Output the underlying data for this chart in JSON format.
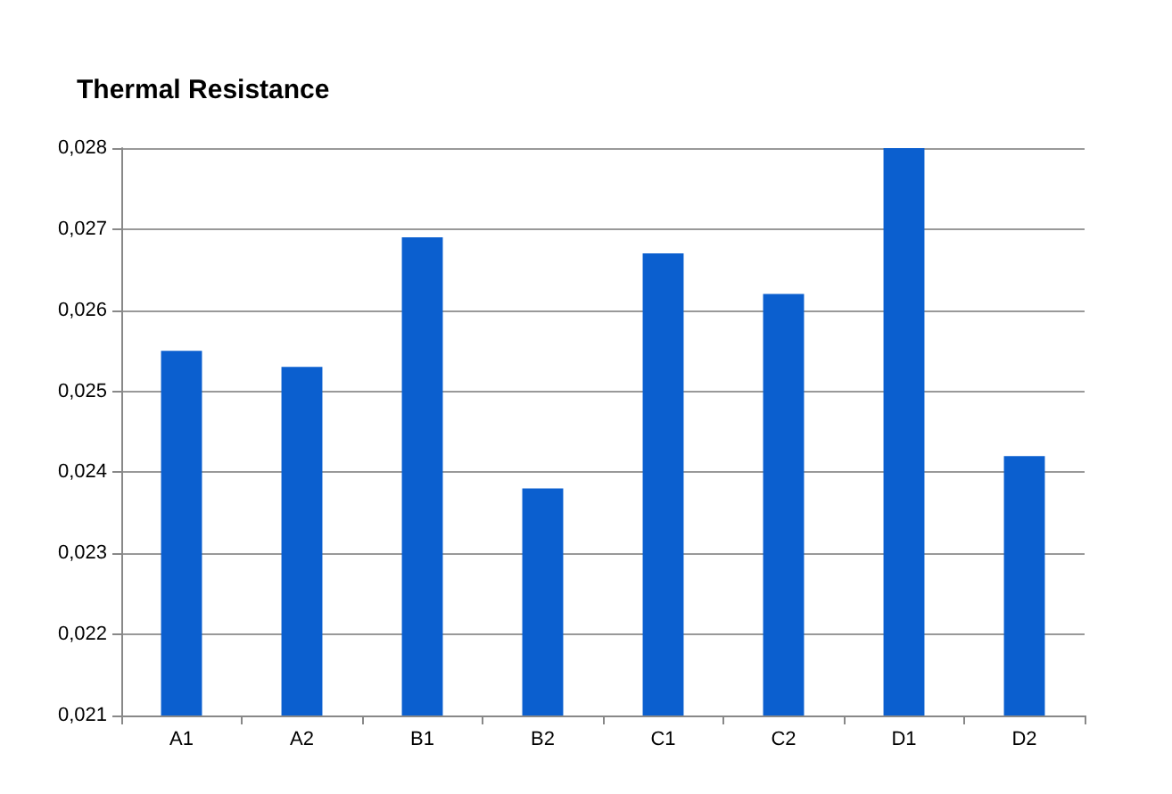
{
  "chart_data": {
    "type": "bar",
    "title": "Thermal Resistance",
    "categories": [
      "A1",
      "A2",
      "B1",
      "B2",
      "C1",
      "C2",
      "D1",
      "D2"
    ],
    "values": [
      0.0255,
      0.0253,
      0.0269,
      0.0238,
      0.0267,
      0.0262,
      0.028,
      0.0242
    ],
    "color": "#0b5fcf",
    "ylim": [
      0.021,
      0.028
    ],
    "yticks": [
      {
        "value": 0.021,
        "label": "0,021"
      },
      {
        "value": 0.022,
        "label": "0,022"
      },
      {
        "value": 0.023,
        "label": "0,023"
      },
      {
        "value": 0.024,
        "label": "0,024"
      },
      {
        "value": 0.025,
        "label": "0,025"
      },
      {
        "value": 0.026,
        "label": "0,026"
      },
      {
        "value": 0.027,
        "label": "0,027"
      },
      {
        "value": 0.028,
        "label": "0,028"
      }
    ],
    "grid": true
  }
}
